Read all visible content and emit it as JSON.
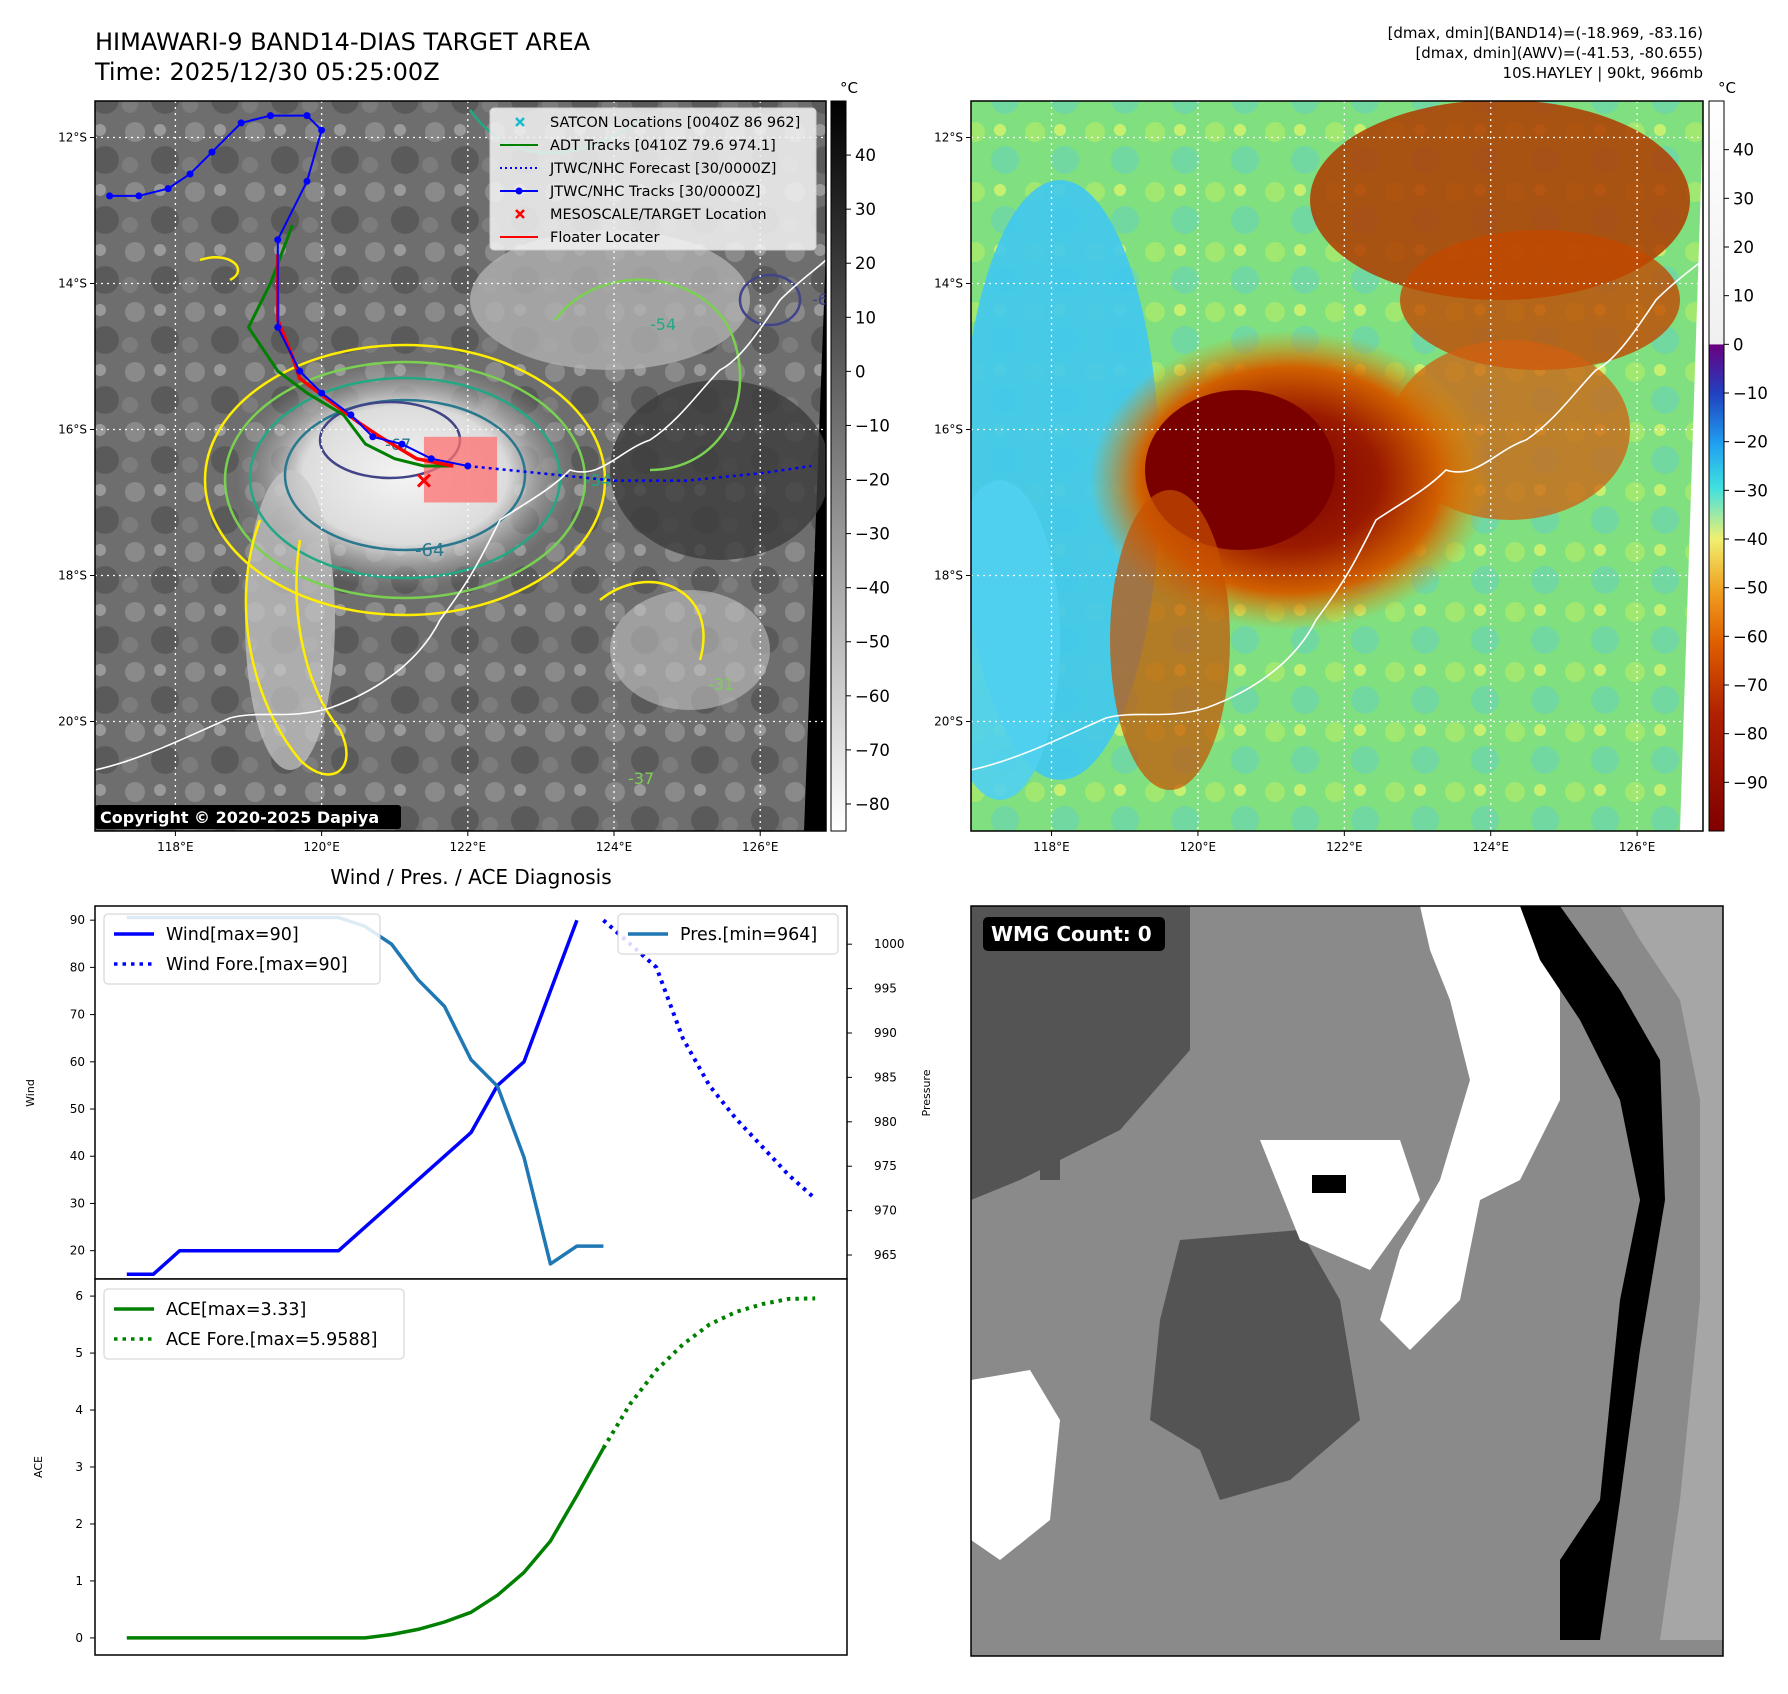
{
  "header": {
    "title": "HIMAWARI-9 BAND14-DIAS TARGET AREA",
    "time": "Time: 2025/12/30 05:25:00Z",
    "stats_line1": "[dmax, dmin](BAND14)=(-18.969, -83.16)",
    "stats_line2": "[dmax, dmin](AWV)=(-41.53, -80.655)",
    "stats_line3": "10S.HAYLEY | 90kt, 966mb"
  },
  "map": {
    "lon_ticks": [
      "118°E",
      "120°E",
      "122°E",
      "124°E",
      "126°E"
    ],
    "lat_ticks": [
      "12°S",
      "14°S",
      "16°S",
      "18°S",
      "20°S"
    ],
    "lon_values": [
      118,
      120,
      122,
      124,
      126
    ],
    "lat_values": [
      -12,
      -14,
      -16,
      -18,
      -20
    ],
    "lon_range": [
      116.9,
      126.9
    ],
    "lat_range": [
      -11.5,
      -21.5
    ],
    "copyright": "Copyright © 2020-2025 Dapiya",
    "contour_labels": [
      "-64",
      "-67",
      "-54",
      "-64",
      "-31",
      "-37",
      "-54"
    ],
    "legend": [
      {
        "label": "SATCON Locations [0040Z 86 962]",
        "color": "#17becf",
        "marker": "x"
      },
      {
        "label": "ADT Tracks [0410Z 79.6 974.1]",
        "color": "#008000",
        "marker": "line"
      },
      {
        "label": "JTWC/NHC Forecast [30/0000Z]",
        "color": "#0000ff",
        "marker": "dotted"
      },
      {
        "label": "JTWC/NHC Tracks [30/0000Z]",
        "color": "#0000ff",
        "marker": "line-dot"
      },
      {
        "label": "MESOSCALE/TARGET Location",
        "color": "#ff0000",
        "marker": "x"
      },
      {
        "label": "Floater Locater",
        "color": "#ff0000",
        "marker": "line"
      }
    ],
    "jtwc_track": [
      [
        117.1,
        -12.8
      ],
      [
        117.5,
        -12.8
      ],
      [
        117.9,
        -12.7
      ],
      [
        118.2,
        -12.5
      ],
      [
        118.5,
        -12.2
      ],
      [
        118.9,
        -11.8
      ],
      [
        119.3,
        -11.7
      ],
      [
        119.8,
        -11.7
      ],
      [
        120.0,
        -11.9
      ],
      [
        119.8,
        -12.6
      ],
      [
        119.4,
        -13.4
      ],
      [
        119.4,
        -14.6
      ],
      [
        119.7,
        -15.2
      ],
      [
        120.0,
        -15.5
      ],
      [
        120.4,
        -15.8
      ],
      [
        120.7,
        -16.1
      ],
      [
        121.1,
        -16.2
      ],
      [
        121.5,
        -16.4
      ],
      [
        122.0,
        -16.5
      ]
    ],
    "jtwc_forecast": [
      [
        122.0,
        -16.5
      ],
      [
        123.0,
        -16.6
      ],
      [
        124.0,
        -16.7
      ],
      [
        125.0,
        -16.7
      ],
      [
        126.0,
        -16.6
      ],
      [
        126.7,
        -16.5
      ]
    ],
    "adt_track": [
      [
        119.6,
        -13.2
      ],
      [
        119.3,
        -14.0
      ],
      [
        119.0,
        -14.6
      ],
      [
        119.4,
        -15.2
      ],
      [
        119.8,
        -15.5
      ],
      [
        120.3,
        -15.8
      ],
      [
        120.6,
        -16.2
      ],
      [
        121.0,
        -16.4
      ],
      [
        121.4,
        -16.5
      ],
      [
        121.8,
        -16.5
      ]
    ],
    "floater_track": [
      [
        119.4,
        -13.6
      ],
      [
        119.4,
        -14.5
      ],
      [
        119.6,
        -15.0
      ],
      [
        119.7,
        -15.3
      ],
      [
        120.1,
        -15.6
      ],
      [
        120.5,
        -15.9
      ],
      [
        120.8,
        -16.1
      ],
      [
        121.3,
        -16.4
      ],
      [
        121.8,
        -16.5
      ]
    ],
    "target_location": [
      121.4,
      -16.7
    ],
    "target_box": [
      121.4,
      -16.1,
      122.4,
      -17.0
    ]
  },
  "colorbar_left": {
    "unit": "°C",
    "ticks": [
      "40",
      "30",
      "20",
      "10",
      "0",
      "−10",
      "−20",
      "−30",
      "−40",
      "−50",
      "−60",
      "−70",
      "−80"
    ],
    "values": [
      40,
      30,
      20,
      10,
      0,
      -10,
      -20,
      -30,
      -40,
      -50,
      -60,
      -70,
      -80
    ],
    "range": [
      -85,
      50
    ]
  },
  "colorbar_right": {
    "unit": "°C",
    "ticks": [
      "40",
      "30",
      "20",
      "10",
      "0",
      "−10",
      "−20",
      "−30",
      "−40",
      "−50",
      "−60",
      "−70",
      "−80",
      "−90"
    ],
    "values": [
      40,
      30,
      20,
      10,
      0,
      -10,
      -20,
      -30,
      -40,
      -50,
      -60,
      -70,
      -80,
      -90
    ],
    "range": [
      -100,
      50
    ]
  },
  "chart_data": [
    {
      "type": "line",
      "title": "Wind / Pres. / ACE Diagnosis",
      "ylabel": "Wind",
      "y2label": "Pressure",
      "ylim": [
        14,
        93
      ],
      "y2lim": [
        962.3,
        1004.3
      ],
      "yticks": [
        20,
        30,
        40,
        50,
        60,
        70,
        80,
        90
      ],
      "y2ticks": [
        965,
        970,
        975,
        980,
        985,
        990,
        995,
        1000
      ],
      "series": [
        {
          "name": "Wind[max=90]",
          "axis": "left",
          "color": "#0000ff",
          "style": "solid",
          "x": [
            0,
            1,
            2,
            3,
            4,
            5,
            6,
            7,
            8,
            9,
            10,
            11,
            12,
            13,
            14,
            15,
            16,
            17
          ],
          "values": [
            15,
            15,
            20,
            20,
            20,
            20,
            20,
            20,
            20,
            25,
            30,
            35,
            40,
            45,
            55,
            60,
            75,
            90
          ]
        },
        {
          "name": "Wind Fore.[max=90]",
          "axis": "left",
          "color": "#0000ff",
          "style": "dotted",
          "x": [
            18,
            19,
            20,
            21,
            22,
            23,
            24,
            25,
            26
          ],
          "values": [
            90,
            85,
            80,
            65,
            55,
            48,
            42,
            36,
            31
          ]
        },
        {
          "name": "Pres.[min=964]",
          "axis": "right",
          "color": "#1f77b4",
          "style": "solid",
          "x": [
            0,
            1,
            2,
            3,
            4,
            5,
            6,
            7,
            8,
            9,
            10,
            11,
            12,
            13,
            14,
            15,
            16,
            17,
            18
          ],
          "values": [
            1003,
            1003,
            1003,
            1003,
            1003,
            1003,
            1003,
            1003,
            1003,
            1002,
            1000,
            996,
            993,
            987,
            984,
            976,
            964,
            966,
            966
          ]
        }
      ]
    },
    {
      "type": "line",
      "ylabel": "ACE",
      "ylim": [
        -0.3,
        6.3
      ],
      "yticks": [
        0,
        1,
        2,
        3,
        4,
        5,
        6
      ],
      "series": [
        {
          "name": "ACE[max=3.33]",
          "color": "#008000",
          "style": "solid",
          "x": [
            0,
            1,
            2,
            3,
            4,
            5,
            6,
            7,
            8,
            9,
            10,
            11,
            12,
            13,
            14,
            15,
            16,
            17,
            18
          ],
          "values": [
            0,
            0,
            0,
            0,
            0,
            0,
            0,
            0,
            0,
            0,
            0.06,
            0.15,
            0.28,
            0.45,
            0.75,
            1.15,
            1.7,
            2.5,
            3.33
          ]
        },
        {
          "name": "ACE Fore.[max=5.9588]",
          "color": "#008000",
          "style": "dotted",
          "x": [
            18,
            19,
            20,
            21,
            22,
            23,
            24,
            25,
            26
          ],
          "values": [
            3.33,
            4.1,
            4.7,
            5.15,
            5.5,
            5.72,
            5.86,
            5.95,
            5.96
          ]
        }
      ]
    }
  ],
  "wmg": {
    "label": "WMG Count: 0"
  }
}
